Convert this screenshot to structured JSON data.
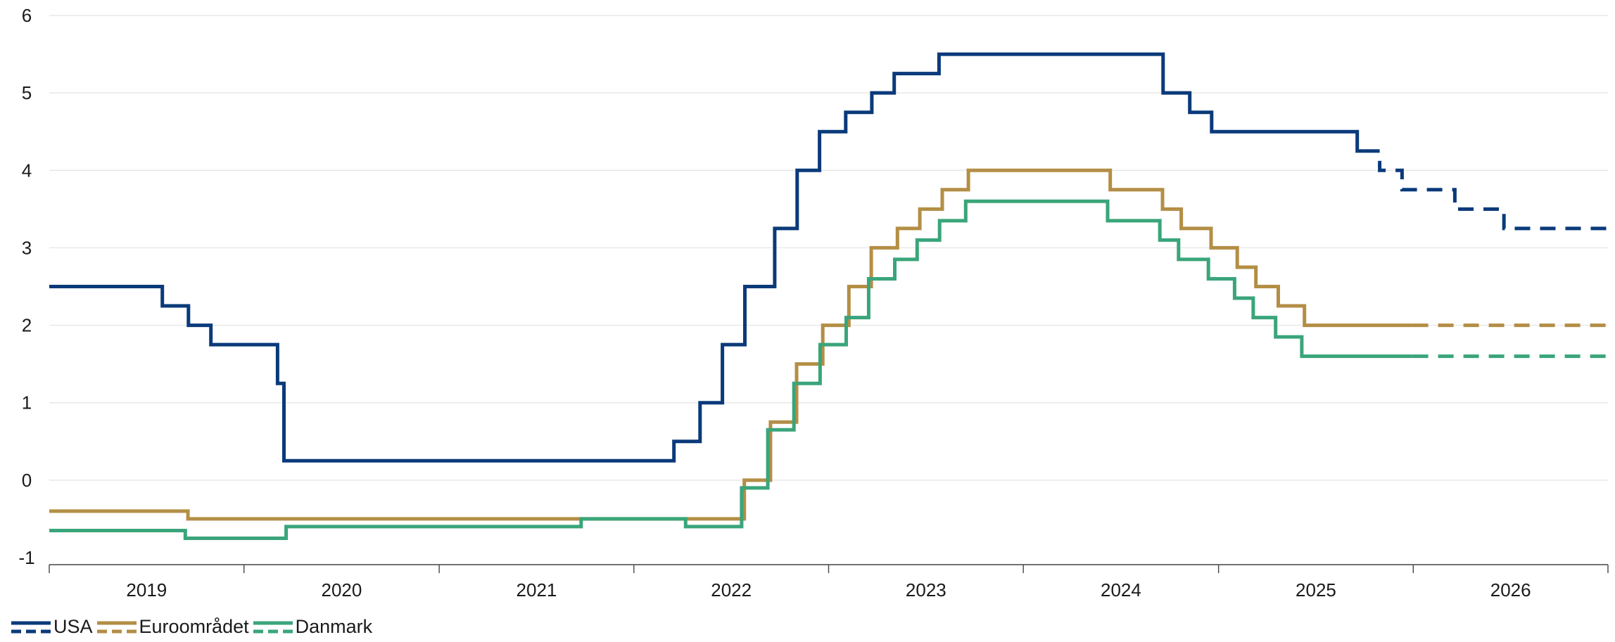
{
  "chart_data": {
    "type": "line",
    "title": "",
    "xlabel": "",
    "ylabel": "",
    "ylim": [
      -1,
      6
    ],
    "yticks": [
      "-1",
      "0",
      "1",
      "2",
      "3",
      "4",
      "5",
      "6"
    ],
    "x_range": [
      "2019-01-01",
      "2027-01-01"
    ],
    "x_tick_labels": [
      "2019",
      "2020",
      "2021",
      "2022",
      "2023",
      "2024",
      "2025",
      "2026"
    ],
    "grid": "horizontal",
    "legend_position": "bottom-left",
    "series": [
      {
        "name": "USA",
        "color": "#0a3a7a",
        "forecast_start": "2025-10-01",
        "x": [
          "2019-01-01",
          "2019-08-01",
          "2019-09-19",
          "2019-10-31",
          "2020-03-04",
          "2020-03-16",
          "2022-03-17",
          "2022-05-05",
          "2022-06-16",
          "2022-07-28",
          "2022-09-22",
          "2022-11-03",
          "2022-12-15",
          "2023-02-02",
          "2023-03-23",
          "2023-05-04",
          "2023-07-27",
          "2024-09-19",
          "2024-11-08",
          "2024-12-19",
          "2025-09-18",
          "2025-10-30",
          "2025-12-11",
          "2026-01-20",
          "2026-03-20",
          "2026-06-20",
          "2027-01-01"
        ],
        "y": [
          2.5,
          2.25,
          2.0,
          1.75,
          1.25,
          0.25,
          0.5,
          1.0,
          1.75,
          2.5,
          3.25,
          4.0,
          4.5,
          4.75,
          5.0,
          5.25,
          5.5,
          5.0,
          4.75,
          4.5,
          4.25,
          4.0,
          3.75,
          3.75,
          3.5,
          3.25,
          3.25
        ]
      },
      {
        "name": "Euroområdet",
        "color": "#b38e45",
        "forecast_start": "2025-12-31",
        "x": [
          "2019-01-01",
          "2019-09-18",
          "2022-07-27",
          "2022-09-14",
          "2022-11-02",
          "2022-12-21",
          "2023-02-08",
          "2023-03-22",
          "2023-05-10",
          "2023-06-21",
          "2023-08-02",
          "2023-09-20",
          "2024-06-12",
          "2024-09-18",
          "2024-10-23",
          "2024-12-18",
          "2025-02-05",
          "2025-03-12",
          "2025-04-23",
          "2025-06-11",
          "2027-01-01"
        ],
        "y": [
          -0.4,
          -0.5,
          0.0,
          0.75,
          1.5,
          2.0,
          2.5,
          3.0,
          3.25,
          3.5,
          3.75,
          4.0,
          3.75,
          3.5,
          3.25,
          3.0,
          2.75,
          2.5,
          2.25,
          2.0,
          2.0
        ]
      },
      {
        "name": "Danmark",
        "color": "#3aa57a",
        "forecast_start": "2025-12-31",
        "x": [
          "2019-01-01",
          "2019-09-13",
          "2020-03-20",
          "2021-09-24",
          "2022-04-08",
          "2022-07-22",
          "2022-09-09",
          "2022-10-28",
          "2022-12-16",
          "2023-02-03",
          "2023-03-17",
          "2023-05-05",
          "2023-06-16",
          "2023-07-28",
          "2023-09-15",
          "2024-06-07",
          "2024-09-13",
          "2024-10-18",
          "2024-12-13",
          "2025-01-31",
          "2025-03-07",
          "2025-04-18",
          "2025-06-06",
          "2027-01-01"
        ],
        "y": [
          -0.65,
          -0.75,
          -0.6,
          -0.5,
          -0.6,
          -0.1,
          0.65,
          1.25,
          1.75,
          2.1,
          2.6,
          2.85,
          3.1,
          3.35,
          3.6,
          3.35,
          3.1,
          2.85,
          2.6,
          2.35,
          2.1,
          1.85,
          1.6,
          1.6
        ]
      }
    ]
  }
}
